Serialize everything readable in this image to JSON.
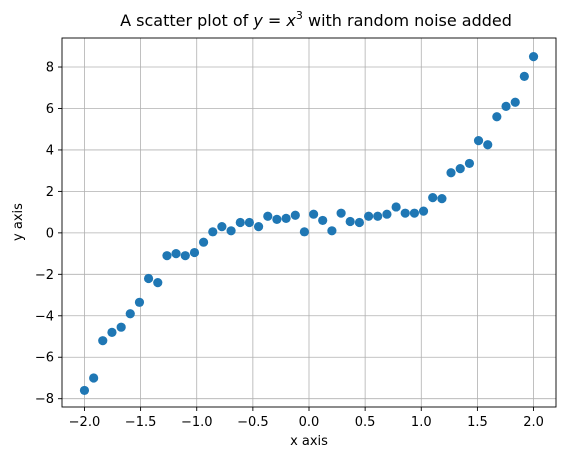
{
  "chart_data": {
    "type": "scatter",
    "title": {
      "prefix": "A scatter plot of ",
      "lhs": "y",
      "eq": " = ",
      "base": "x",
      "exp": "3",
      "suffix": " with random noise added"
    },
    "xlabel": "x axis",
    "ylabel": "y axis",
    "xlim": [
      -2.2,
      2.2
    ],
    "ylim": [
      -8.4,
      9.4
    ],
    "xticks": [
      -2.0,
      -1.5,
      -1.0,
      -0.5,
      0.0,
      0.5,
      1.0,
      1.5,
      2.0
    ],
    "xtick_labels": [
      "−2.0",
      "−1.5",
      "−1.0",
      "−0.5",
      "0.0",
      "0.5",
      "1.0",
      "1.5",
      "2.0"
    ],
    "yticks": [
      -8,
      -6,
      -4,
      -2,
      0,
      2,
      4,
      6,
      8
    ],
    "ytick_labels": [
      "−8",
      "−6",
      "−4",
      "−2",
      "0",
      "2",
      "4",
      "6",
      "8"
    ],
    "grid": true,
    "marker_color": "#1f77b4",
    "series": [
      {
        "x": [
          -2.0,
          -1.918,
          -1.837,
          -1.755,
          -1.673,
          -1.592,
          -1.51,
          -1.429,
          -1.347,
          -1.265,
          -1.184,
          -1.102,
          -1.02,
          -0.939,
          -0.857,
          -0.776,
          -0.694,
          -0.612,
          -0.531,
          -0.449,
          -0.367,
          -0.286,
          -0.204,
          -0.122,
          -0.041,
          0.041,
          0.122,
          0.204,
          0.286,
          0.367,
          0.449,
          0.531,
          0.612,
          0.694,
          0.776,
          0.857,
          0.939,
          1.02,
          1.102,
          1.184,
          1.265,
          1.347,
          1.429,
          1.51,
          1.592,
          1.673,
          1.755,
          1.837,
          1.918,
          2.0
        ],
        "y": [
          -7.6,
          -7.0,
          -5.2,
          -4.8,
          -4.55,
          -3.9,
          -3.35,
          -2.2,
          -2.4,
          -1.1,
          -1.0,
          -1.1,
          -0.95,
          -0.45,
          0.05,
          0.3,
          0.1,
          0.5,
          0.5,
          0.3,
          0.8,
          0.65,
          0.7,
          0.85,
          0.05,
          0.9,
          0.6,
          0.1,
          0.95,
          0.55,
          0.5,
          0.8,
          0.8,
          0.9,
          1.25,
          0.95,
          0.95,
          1.05,
          1.7,
          1.65,
          2.9,
          3.1,
          3.35,
          4.45,
          4.25,
          5.6,
          6.1,
          6.3,
          7.55,
          8.5
        ]
      }
    ]
  }
}
